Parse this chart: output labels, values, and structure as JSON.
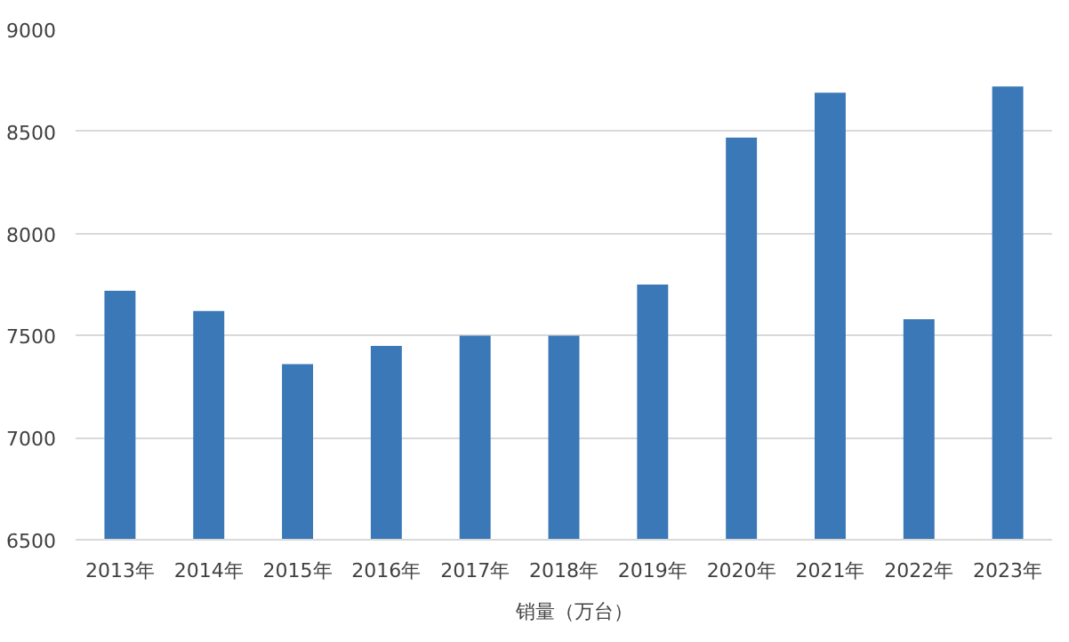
{
  "chart_data": {
    "type": "bar",
    "categories": [
      "2013年",
      "2014年",
      "2015年",
      "2016年",
      "2017年",
      "2018年",
      "2019年",
      "2020年",
      "2021年",
      "2022年",
      "2023年"
    ],
    "series": [
      {
        "name": "销量（万台）",
        "color": "#3b78b8",
        "values": [
          7720,
          7620,
          7360,
          7450,
          7500,
          7500,
          7750,
          8470,
          8690,
          7580,
          8720
        ]
      }
    ],
    "ylim": [
      6500,
      9000
    ],
    "yticks": [
      6500,
      7000,
      7500,
      8000,
      8500,
      9000
    ],
    "grid": "y",
    "legend": "bottom"
  }
}
